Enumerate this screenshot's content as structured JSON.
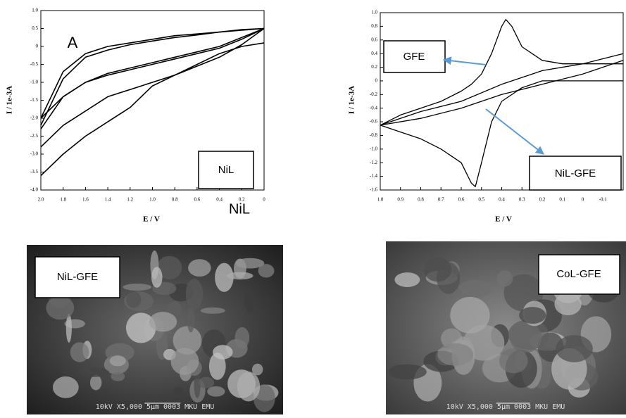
{
  "chart_data": [
    {
      "type": "line",
      "ylabel": "I / 1e-3A",
      "xlabel": "E / V",
      "xlim": [
        2.0,
        0
      ],
      "ylim": [
        -4.0,
        1.0
      ],
      "xticks": [
        {
          "value": 2.0,
          "label": "2.0"
        },
        1.8,
        1.6,
        1.4,
        1.2,
        {
          "value": 1.0,
          "label": "1.0"
        },
        0.8,
        0.6,
        0.4,
        0.2,
        0
      ],
      "yticks": [
        {
          "value": 1.0,
          "label": "1.0"
        },
        0.5,
        0,
        -0.5,
        {
          "value": -1.0,
          "label": "-1.0"
        },
        -1.5,
        {
          "value": -2.0,
          "label": "-2.0"
        },
        -2.5,
        {
          "value": -3.0,
          "label": "-3.0"
        },
        -3.5,
        {
          "value": -4.0,
          "label": "-4.0"
        }
      ],
      "annotations": [
        "A",
        "NiL",
        "NiL"
      ],
      "series": [
        {
          "color": "#000000",
          "x": [
            0,
            0.2,
            0.4,
            0.6,
            0.8,
            1.0,
            1.2,
            1.4,
            1.6,
            1.8,
            2.0
          ],
          "values": [
            0.5,
            0.45,
            0.4,
            0.35,
            0.3,
            0.2,
            0.1,
            0,
            -0.2,
            -0.7,
            -2.0
          ]
        },
        {
          "color": "#000000",
          "x": [
            2.0,
            1.8,
            1.6,
            1.4,
            1.2,
            1.0,
            0.8,
            0.6,
            0.4,
            0.2,
            0
          ],
          "values": [
            -2.2,
            -0.9,
            -0.3,
            -0.1,
            0.05,
            0.15,
            0.25,
            0.32,
            0.4,
            0.47,
            0.5
          ]
        },
        {
          "color": "#000000",
          "x": [
            2.0,
            1.8,
            1.6,
            1.4,
            1.2,
            1.0,
            0.8,
            0.6,
            0.4,
            0.2,
            0
          ],
          "values": [
            -2.0,
            -1.4,
            -1.0,
            -0.8,
            -0.65,
            -0.5,
            -0.35,
            -0.2,
            -0.05,
            0.2,
            0.5
          ]
        },
        {
          "color": "#000000",
          "x": [
            2.0,
            1.8,
            1.6,
            1.4,
            1.2,
            1.0,
            0.8,
            0.6,
            0.4,
            0.2,
            0
          ],
          "values": [
            -2.3,
            -1.4,
            -1.0,
            -0.75,
            -0.6,
            -0.45,
            -0.3,
            -0.15,
            0,
            0.25,
            0.5
          ]
        },
        {
          "color": "#000000",
          "x": [
            2.0,
            1.8,
            1.6,
            1.4,
            1.2,
            1.0,
            0.8,
            0.6,
            0.4,
            0.2,
            0
          ],
          "values": [
            -2.8,
            -2.2,
            -1.8,
            -1.4,
            -1.2,
            -1.0,
            -0.8,
            -0.55,
            -0.3,
            0.05,
            0.5
          ]
        },
        {
          "color": "#000000",
          "x": [
            2.0,
            1.8,
            1.6,
            1.4,
            1.2,
            1.1,
            1.0,
            0.8,
            0.6,
            0.4,
            0.2,
            0
          ],
          "values": [
            -3.6,
            -3.0,
            -2.5,
            -2.1,
            -1.7,
            -1.4,
            -1.1,
            -0.8,
            -0.5,
            -0.2,
            0,
            0.1
          ]
        }
      ]
    },
    {
      "type": "line",
      "ylabel": "I / 1e-3A",
      "xlabel": "E / V",
      "xlim": [
        1.0,
        -0.2
      ],
      "ylim": [
        -1.6,
        1.0
      ],
      "xticks": [
        {
          "value": 1.0,
          "label": "1.0"
        },
        0.9,
        0.8,
        0.7,
        0.6,
        0.5,
        0.4,
        0.3,
        0.2,
        0.1,
        0,
        -0.1
      ],
      "yticks": [
        {
          "value": 1.0,
          "label": "1.0"
        },
        0.8,
        0.6,
        0.4,
        0.2,
        0,
        -0.2,
        -0.4,
        -0.6,
        -0.8,
        {
          "value": -1.0,
          "label": "-1.0"
        },
        -1.2,
        -1.4,
        -1.6
      ],
      "annotations": [
        "GFE",
        "NiL-GFE"
      ],
      "series": [
        {
          "color": "#000000",
          "x": [
            1.0,
            0.9,
            0.8,
            0.7,
            0.6,
            0.55,
            0.5,
            0.45,
            0.4,
            0.38,
            0.35,
            0.3,
            0.2,
            0.1,
            0,
            -0.1,
            -0.2
          ],
          "values": [
            -0.65,
            -0.5,
            -0.4,
            -0.3,
            -0.15,
            -0.05,
            0.1,
            0.4,
            0.8,
            0.9,
            0.8,
            0.5,
            0.3,
            0.25,
            0.25,
            0.25,
            0.25
          ]
        },
        {
          "color": "#000000",
          "x": [
            -0.2,
            -0.1,
            0,
            0.1,
            0.2,
            0.3,
            0.4,
            0.45,
            0.5,
            0.53,
            0.55,
            0.6,
            0.7,
            0.8,
            0.9,
            1.0
          ],
          "values": [
            0,
            0,
            0,
            0,
            0,
            -0.1,
            -0.3,
            -0.6,
            -1.2,
            -1.55,
            -1.5,
            -1.2,
            -1.0,
            -0.85,
            -0.75,
            -0.65
          ]
        },
        {
          "color": "#000000",
          "x": [
            1.0,
            0.8,
            0.6,
            0.4,
            0.2,
            0,
            -0.2
          ],
          "values": [
            -0.65,
            -0.45,
            -0.3,
            -0.05,
            0.15,
            0.25,
            0.4
          ]
        },
        {
          "color": "#000000",
          "x": [
            -0.2,
            0,
            0.2,
            0.4,
            0.6,
            0.8,
            1.0
          ],
          "values": [
            0.3,
            0.1,
            -0.05,
            -0.2,
            -0.4,
            -0.55,
            -0.65
          ]
        }
      ]
    }
  ],
  "images": [
    {
      "label": "NiL-GFE",
      "footer": "10kV  X5,000  5µm 0003 MKU EMU"
    },
    {
      "label": "CoL-GFE",
      "footer": "10kV  X5,000  5µm 0003 MKU EMU"
    }
  ]
}
